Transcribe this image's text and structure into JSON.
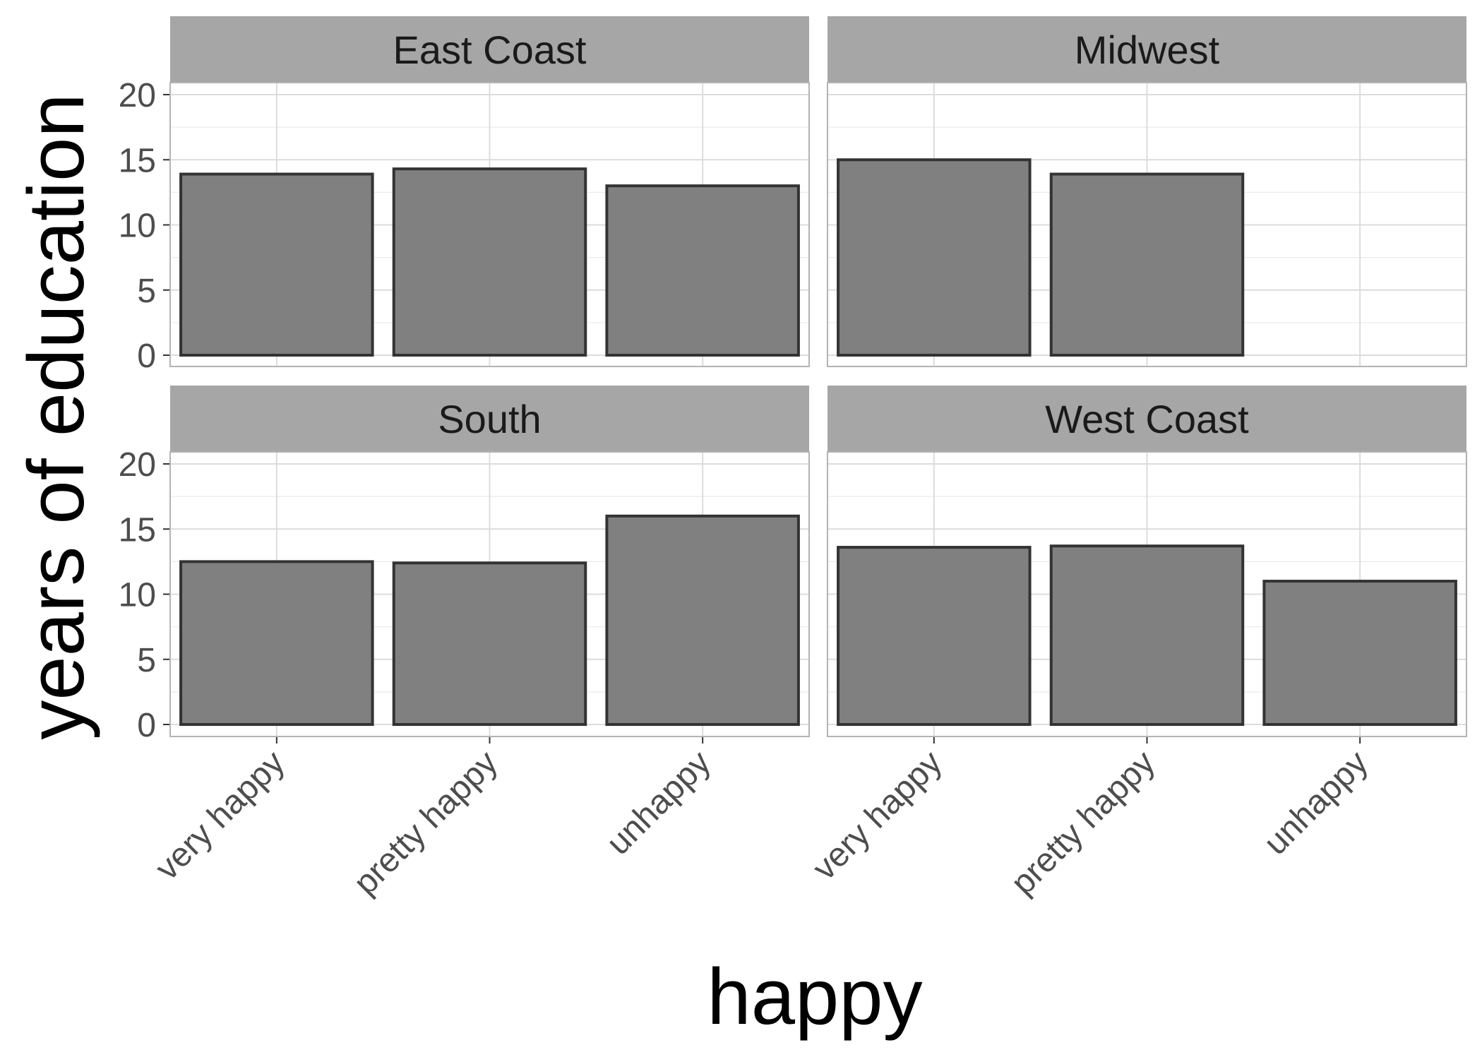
{
  "chart_data": {
    "type": "bar",
    "facet_layout": "2x2",
    "xlabel": "happy",
    "ylabel": "years of education",
    "categories": [
      "very happy",
      "pretty happy",
      "unhappy"
    ],
    "ylim": [
      0,
      21
    ],
    "yticks": [
      0,
      5,
      10,
      15,
      20
    ],
    "grid": true,
    "bar_fill": "#808080",
    "bar_stroke": "#333333",
    "panels": [
      {
        "name": "East Coast",
        "values": [
          13.9,
          14.3,
          13.0
        ]
      },
      {
        "name": "Midwest",
        "values": [
          15.0,
          13.9,
          null
        ]
      },
      {
        "name": "South",
        "values": [
          12.5,
          12.4,
          16.0
        ]
      },
      {
        "name": "West Coast",
        "values": [
          13.6,
          13.7,
          11.0
        ]
      }
    ]
  }
}
